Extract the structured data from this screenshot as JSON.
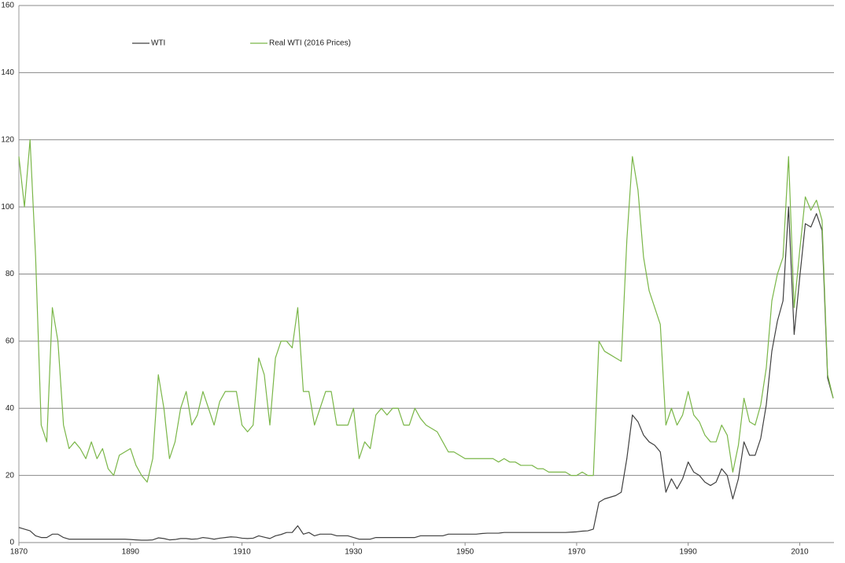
{
  "chart_data": {
    "type": "line",
    "x": [
      1870,
      1871,
      1872,
      1873,
      1874,
      1875,
      1876,
      1877,
      1878,
      1879,
      1880,
      1881,
      1882,
      1883,
      1884,
      1885,
      1886,
      1887,
      1888,
      1889,
      1890,
      1891,
      1892,
      1893,
      1894,
      1895,
      1896,
      1897,
      1898,
      1899,
      1900,
      1901,
      1902,
      1903,
      1904,
      1905,
      1906,
      1907,
      1908,
      1909,
      1910,
      1911,
      1912,
      1913,
      1914,
      1915,
      1916,
      1917,
      1918,
      1919,
      1920,
      1921,
      1922,
      1923,
      1924,
      1925,
      1926,
      1927,
      1928,
      1929,
      1930,
      1931,
      1932,
      1933,
      1934,
      1935,
      1936,
      1937,
      1938,
      1939,
      1940,
      1941,
      1942,
      1943,
      1944,
      1945,
      1946,
      1947,
      1948,
      1949,
      1950,
      1951,
      1952,
      1953,
      1954,
      1955,
      1956,
      1957,
      1958,
      1959,
      1960,
      1961,
      1962,
      1963,
      1964,
      1965,
      1966,
      1967,
      1968,
      1969,
      1970,
      1971,
      1972,
      1973,
      1974,
      1975,
      1976,
      1977,
      1978,
      1979,
      1980,
      1981,
      1982,
      1983,
      1984,
      1985,
      1986,
      1987,
      1988,
      1989,
      1990,
      1991,
      1992,
      1993,
      1994,
      1995,
      1996,
      1997,
      1998,
      1999,
      2000,
      2001,
      2002,
      2003,
      2004,
      2005,
      2006,
      2007,
      2008,
      2009,
      2010,
      2011,
      2012,
      2013,
      2014,
      2015,
      2016
    ],
    "series": [
      {
        "name": "WTI",
        "color": "#404040",
        "values": [
          4.5,
          4,
          3.5,
          2,
          1.5,
          1.5,
          2.5,
          2.5,
          1.5,
          1,
          1,
          1,
          1,
          1,
          1,
          1,
          1,
          1,
          1,
          1,
          0.9,
          0.8,
          0.7,
          0.7,
          0.8,
          1.4,
          1.2,
          0.8,
          0.9,
          1.2,
          1.2,
          1,
          1.1,
          1.5,
          1.3,
          1,
          1.3,
          1.5,
          1.7,
          1.6,
          1.3,
          1.2,
          1.3,
          2,
          1.6,
          1.2,
          2,
          2.4,
          3,
          3,
          5,
          2.5,
          3,
          2,
          2.5,
          2.5,
          2.5,
          2,
          2,
          2,
          1.5,
          1,
          1,
          1,
          1.5,
          1.5,
          1.5,
          1.5,
          1.5,
          1.5,
          1.5,
          1.5,
          2,
          2,
          2,
          2,
          2,
          2.5,
          2.5,
          2.5,
          2.5,
          2.5,
          2.5,
          2.7,
          2.8,
          2.8,
          2.8,
          3,
          3,
          3,
          3,
          3,
          3,
          3,
          3,
          3,
          3,
          3,
          3,
          3.1,
          3.2,
          3.4,
          3.5,
          4,
          12,
          13,
          13.5,
          14,
          15,
          25,
          38,
          36,
          32,
          30,
          29,
          27,
          15,
          19,
          16,
          19,
          24,
          21,
          20,
          18,
          17,
          18,
          22,
          20,
          13,
          19,
          30,
          26,
          26,
          31,
          41,
          57,
          66,
          72,
          100,
          62,
          79,
          95,
          94,
          98,
          93,
          49,
          43
        ]
      },
      {
        "name": "Real WTI (2016 Prices)",
        "color": "#7ab648",
        "values": [
          115,
          100,
          120,
          85,
          35,
          30,
          70,
          60,
          35,
          28,
          30,
          28,
          25,
          30,
          25,
          28,
          22,
          20,
          26,
          27,
          28,
          23,
          20,
          18,
          25,
          50,
          40,
          25,
          30,
          40,
          45,
          35,
          38,
          45,
          40,
          35,
          42,
          45,
          45,
          45,
          35,
          33,
          35,
          55,
          50,
          35,
          55,
          60,
          60,
          58,
          70,
          45,
          45,
          35,
          40,
          45,
          45,
          35,
          35,
          35,
          40,
          25,
          30,
          28,
          38,
          40,
          38,
          40,
          40,
          35,
          35,
          40,
          37,
          35,
          34,
          33,
          30,
          27,
          27,
          26,
          25,
          25,
          25,
          25,
          25,
          25,
          24,
          25,
          24,
          24,
          23,
          23,
          23,
          22,
          22,
          21,
          21,
          21,
          21,
          20,
          20,
          21,
          20,
          20,
          60,
          57,
          56,
          55,
          54,
          90,
          115,
          105,
          85,
          75,
          70,
          65,
          35,
          40,
          35,
          38,
          45,
          38,
          36,
          32,
          30,
          30,
          35,
          32,
          21,
          29,
          43,
          36,
          35,
          41,
          52,
          72,
          80,
          85,
          115,
          70,
          87,
          103,
          99,
          102,
          96,
          50,
          43
        ]
      }
    ],
    "xlim": [
      1870,
      2016
    ],
    "xticks": [
      1870,
      1890,
      1910,
      1930,
      1950,
      1970,
      1990,
      2010
    ],
    "ylim": [
      0,
      160
    ],
    "yticks": [
      0,
      20,
      40,
      60,
      80,
      100,
      120,
      140,
      160
    ],
    "grid": true
  }
}
